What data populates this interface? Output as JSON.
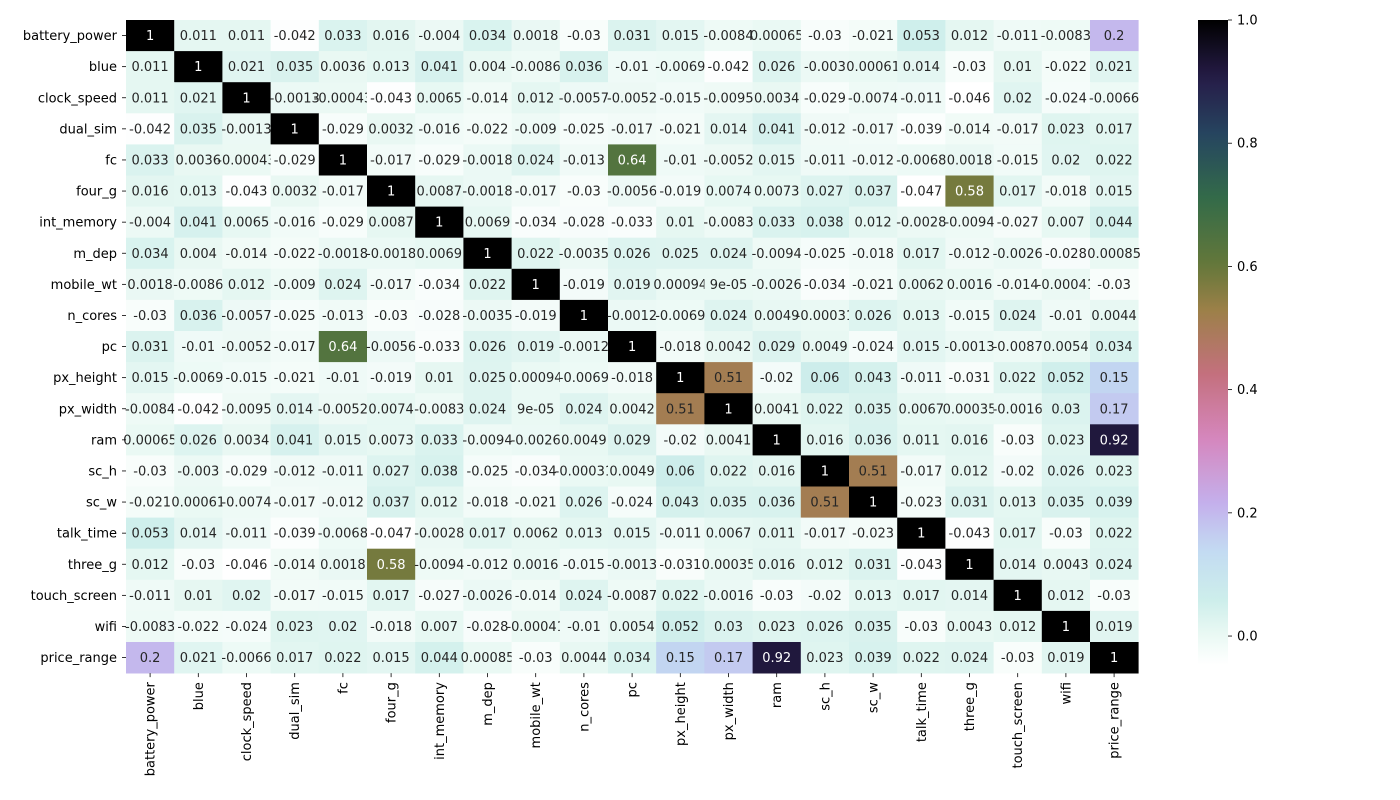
{
  "chart_data": {
    "type": "heatmap",
    "title": "",
    "xlabel": "",
    "ylabel": "",
    "labels": [
      "battery_power",
      "blue",
      "clock_speed",
      "dual_sim",
      "fc",
      "four_g",
      "int_memory",
      "m_dep",
      "mobile_wt",
      "n_cores",
      "pc",
      "px_height",
      "px_width",
      "ram",
      "sc_h",
      "sc_w",
      "talk_time",
      "three_g",
      "touch_screen",
      "wifi",
      "price_range"
    ],
    "cell_text": [
      [
        "1",
        "0.011",
        "0.011",
        "-0.042",
        "0.033",
        "0.016",
        "-0.004",
        "0.034",
        "0.0018",
        "-0.03",
        "0.031",
        "0.015",
        "-0.0084",
        "0.00065",
        "-0.03",
        "-0.021",
        "0.053",
        "0.012",
        "-0.011",
        "-0.0083",
        "0.2"
      ],
      [
        "0.011",
        "1",
        "0.021",
        "0.035",
        "0.0036",
        "0.013",
        "0.041",
        "0.004",
        "-0.0086",
        "0.036",
        "-0.01",
        "-0.0069",
        "-0.042",
        "0.026",
        "-0.003",
        "0.00061",
        "0.014",
        "-0.03",
        "0.01",
        "-0.022",
        "0.021"
      ],
      [
        "0.011",
        "0.021",
        "1",
        "-0.0013",
        "-0.00043",
        "-0.043",
        "0.0065",
        "-0.014",
        "0.012",
        "-0.0057",
        "-0.0052",
        "-0.015",
        "-0.0095",
        "0.0034",
        "-0.029",
        "-0.0074",
        "-0.011",
        "-0.046",
        "0.02",
        "-0.024",
        "-0.0066"
      ],
      [
        "-0.042",
        "0.035",
        "-0.0013",
        "1",
        "-0.029",
        "0.0032",
        "-0.016",
        "-0.022",
        "-0.009",
        "-0.025",
        "-0.017",
        "-0.021",
        "0.014",
        "0.041",
        "-0.012",
        "-0.017",
        "-0.039",
        "-0.014",
        "-0.017",
        "0.023",
        "0.017"
      ],
      [
        "0.033",
        "0.0036",
        "-0.00043",
        "-0.029",
        "1",
        "-0.017",
        "-0.029",
        "-0.0018",
        "0.024",
        "-0.013",
        "0.64",
        "-0.01",
        "-0.0052",
        "0.015",
        "-0.011",
        "-0.012",
        "-0.0068",
        "0.0018",
        "-0.015",
        "0.02",
        "0.022"
      ],
      [
        "0.016",
        "0.013",
        "-0.043",
        "0.0032",
        "-0.017",
        "1",
        "0.0087",
        "-0.0018",
        "-0.017",
        "-0.03",
        "-0.0056",
        "-0.019",
        "0.0074",
        "0.0073",
        "0.027",
        "0.037",
        "-0.047",
        "0.58",
        "0.017",
        "-0.018",
        "0.015"
      ],
      [
        "-0.004",
        "0.041",
        "0.0065",
        "-0.016",
        "-0.029",
        "0.0087",
        "1",
        "0.0069",
        "-0.034",
        "-0.028",
        "-0.033",
        "0.01",
        "-0.0083",
        "0.033",
        "0.038",
        "0.012",
        "-0.0028",
        "-0.0094",
        "-0.027",
        "0.007",
        "0.044"
      ],
      [
        "0.034",
        "0.004",
        "-0.014",
        "-0.022",
        "-0.0018",
        "-0.0018",
        "0.0069",
        "1",
        "0.022",
        "-0.0035",
        "0.026",
        "0.025",
        "0.024",
        "-0.0094",
        "-0.025",
        "-0.018",
        "0.017",
        "-0.012",
        "-0.0026",
        "-0.028",
        "0.00085"
      ],
      [
        "0.0018",
        "-0.0086",
        "0.012",
        "-0.009",
        "0.024",
        "-0.017",
        "-0.034",
        "0.022",
        "1",
        "-0.019",
        "0.019",
        "0.00094",
        "9e-05",
        "-0.0026",
        "-0.034",
        "-0.021",
        "0.0062",
        "0.0016",
        "-0.014",
        "-0.00041",
        "-0.03"
      ],
      [
        "-0.03",
        "0.036",
        "-0.0057",
        "-0.025",
        "-0.013",
        "-0.03",
        "-0.028",
        "-0.0035",
        "-0.019",
        "1",
        "-0.0012",
        "-0.0069",
        "0.024",
        "0.0049",
        "-0.00031",
        "0.026",
        "0.013",
        "-0.015",
        "0.024",
        "-0.01",
        "0.0044"
      ],
      [
        "0.031",
        "-0.01",
        "-0.0052",
        "-0.017",
        "0.64",
        "-0.0056",
        "-0.033",
        "0.026",
        "0.019",
        "-0.0012",
        "1",
        "-0.018",
        "0.0042",
        "0.029",
        "0.0049",
        "-0.024",
        "0.015",
        "-0.0013",
        "-0.0087",
        "0.0054",
        "0.034"
      ],
      [
        "0.015",
        "-0.0069",
        "-0.015",
        "-0.021",
        "-0.01",
        "-0.019",
        "0.01",
        "0.025",
        "0.00094",
        "-0.0069",
        "-0.018",
        "1",
        "0.51",
        "-0.02",
        "0.06",
        "0.043",
        "-0.011",
        "-0.031",
        "0.022",
        "0.052",
        "0.15"
      ],
      [
        "-0.0084",
        "-0.042",
        "-0.0095",
        "0.014",
        "-0.0052",
        "0.0074",
        "-0.0083",
        "0.024",
        "9e-05",
        "0.024",
        "0.0042",
        "0.51",
        "1",
        "0.0041",
        "0.022",
        "0.035",
        "0.0067",
        "0.00035",
        "-0.0016",
        "0.03",
        "0.17"
      ],
      [
        "0.00065",
        "0.026",
        "0.0034",
        "0.041",
        "0.015",
        "0.0073",
        "0.033",
        "-0.0094",
        "-0.0026",
        "0.0049",
        "0.029",
        "-0.02",
        "0.0041",
        "1",
        "0.016",
        "0.036",
        "0.011",
        "0.016",
        "-0.03",
        "0.023",
        "0.92"
      ],
      [
        "-0.03",
        "-0.003",
        "-0.029",
        "-0.012",
        "-0.011",
        "0.027",
        "0.038",
        "-0.025",
        "-0.034",
        "-0.00031",
        "0.0049",
        "0.06",
        "0.022",
        "0.016",
        "1",
        "0.51",
        "-0.017",
        "0.012",
        "-0.02",
        "0.026",
        "0.023"
      ],
      [
        "-0.021",
        "0.00061",
        "-0.0074",
        "-0.017",
        "-0.012",
        "0.037",
        "0.012",
        "-0.018",
        "-0.021",
        "0.026",
        "-0.024",
        "0.043",
        "0.035",
        "0.036",
        "0.51",
        "1",
        "-0.023",
        "0.031",
        "0.013",
        "0.035",
        "0.039"
      ],
      [
        "0.053",
        "0.014",
        "-0.011",
        "-0.039",
        "-0.0068",
        "-0.047",
        "-0.0028",
        "0.017",
        "0.0062",
        "0.013",
        "0.015",
        "-0.011",
        "0.0067",
        "0.011",
        "-0.017",
        "-0.023",
        "1",
        "-0.043",
        "0.017",
        "-0.03",
        "0.022"
      ],
      [
        "0.012",
        "-0.03",
        "-0.046",
        "-0.014",
        "0.0018",
        "0.58",
        "-0.0094",
        "-0.012",
        "0.0016",
        "-0.015",
        "-0.0013",
        "-0.031",
        "0.00035",
        "0.016",
        "0.012",
        "0.031",
        "-0.043",
        "1",
        "0.014",
        "0.0043",
        "0.024"
      ],
      [
        "-0.011",
        "0.01",
        "0.02",
        "-0.017",
        "-0.015",
        "0.017",
        "-0.027",
        "-0.0026",
        "-0.014",
        "0.024",
        "-0.0087",
        "0.022",
        "-0.0016",
        "-0.03",
        "-0.02",
        "0.013",
        "0.017",
        "0.014",
        "1",
        "0.012",
        "-0.03"
      ],
      [
        "-0.0083",
        "-0.022",
        "-0.024",
        "0.023",
        "0.02",
        "-0.018",
        "0.007",
        "-0.028",
        "-0.00041",
        "-0.01",
        "0.0054",
        "0.052",
        "0.03",
        "0.023",
        "0.026",
        "0.035",
        "-0.03",
        "0.0043",
        "0.012",
        "1",
        "0.019"
      ],
      [
        "0.2",
        "0.021",
        "-0.0066",
        "0.017",
        "0.022",
        "0.015",
        "0.044",
        "0.00085",
        "-0.03",
        "0.0044",
        "0.034",
        "0.15",
        "0.17",
        "0.92",
        "0.023",
        "0.039",
        "0.022",
        "0.024",
        "-0.03",
        "0.019",
        "1"
      ]
    ],
    "colorbar": {
      "colormap": "cubehelix_r",
      "vmin": -0.047,
      "vmax": 1.0,
      "ticks": [
        "0.0",
        "0.2",
        "0.4",
        "0.6",
        "0.8",
        "1.0"
      ],
      "tick_values": [
        0.0,
        0.2,
        0.4,
        0.6,
        0.8,
        1.0
      ]
    },
    "grid": false,
    "legend": "colorbar-right"
  }
}
